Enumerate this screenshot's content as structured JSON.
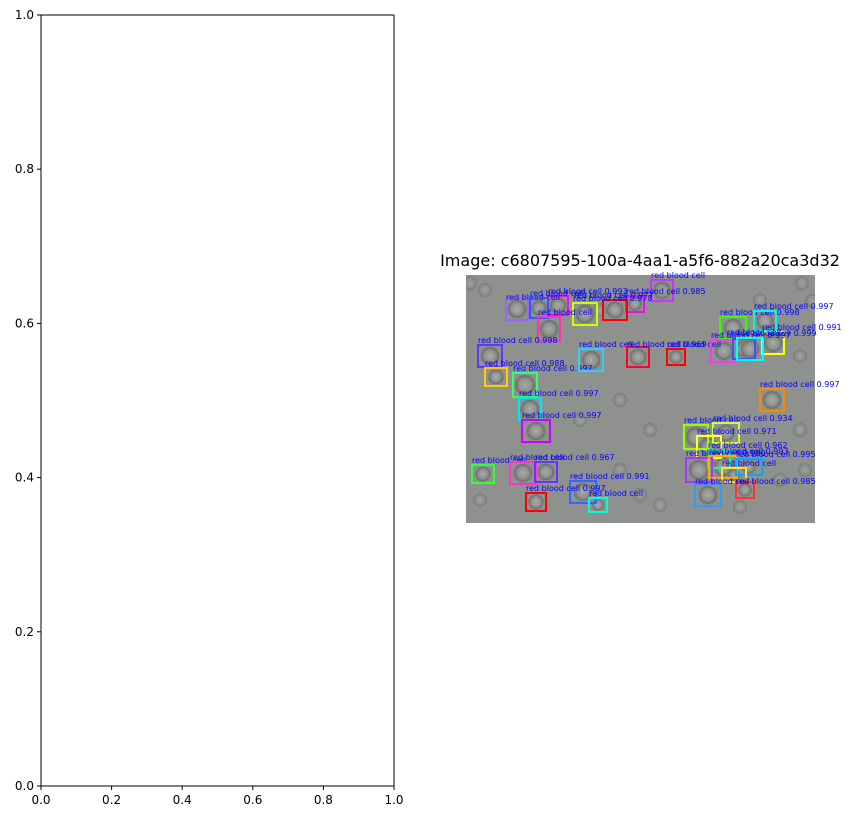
{
  "chart_data": [
    {
      "type": "scatter",
      "title": "",
      "xlabel": "",
      "ylabel": "",
      "xlim": [
        0,
        1
      ],
      "ylim": [
        0,
        1
      ],
      "x_ticks": [
        "0.0",
        "0.2",
        "0.4",
        "0.6",
        "0.8",
        "1.0"
      ],
      "y_ticks": [
        "0.0",
        "0.2",
        "0.4",
        "0.6",
        "0.8",
        "1.0"
      ],
      "series": [],
      "grid": false
    },
    {
      "type": "image",
      "title": "Image: c6807595-100a-4aa1-a5f6-882a20ca3d32",
      "background_color": "#8f918f",
      "detections": [
        {
          "label": "red blood cell",
          "color": "#cc33ff"
        },
        {
          "label": "red blood cell 0.993",
          "color": "#ff00ff"
        },
        {
          "label": "red blood cell 0.985",
          "color": "#ff00ff"
        },
        {
          "label": "red blood cell 0.977",
          "color": "#ff0000"
        },
        {
          "label": "red blood cell",
          "color": "#9966ff"
        },
        {
          "label": "red blood cell",
          "color": "#3355ff"
        },
        {
          "label": "red blood cell 0.978",
          "color": "#ccff00"
        },
        {
          "label": "red blood cell",
          "color": "#ff33aa"
        },
        {
          "label": "red blood cell 0.998",
          "color": "#6633ff"
        },
        {
          "label": "red blood cell 0.988",
          "color": "#ffcc00"
        },
        {
          "label": "red blood cell 0.997",
          "color": "#33ff66"
        },
        {
          "label": "red blood cell 0.997",
          "color": "#00e5ff"
        },
        {
          "label": "red blood cell 0.997",
          "color": "#cc00ff"
        },
        {
          "label": "red blood cell",
          "color": "#33ccff"
        },
        {
          "label": "red blood cell 0.969",
          "color": "#ff0033"
        },
        {
          "label": "red blood cell",
          "color": "#ff0000"
        },
        {
          "label": "red blood cell 0.998",
          "color": "#33ff00"
        },
        {
          "label": "red blood cell 0.997",
          "color": "#00ffcc"
        },
        {
          "label": "red blood cell 0.991",
          "color": "#ffff00"
        },
        {
          "label": "red blood cell 0.997",
          "color": "#ff33ff"
        },
        {
          "label": "red blood cell",
          "color": "#3355ff"
        },
        {
          "label": "red blood cell 0.999",
          "color": "#00ffff"
        },
        {
          "label": "red blood cell 0.997",
          "color": "#ff8800"
        },
        {
          "label": "red blood cell",
          "color": "#99ff00"
        },
        {
          "label": "red blood cell 0.934",
          "color": "#ccff33"
        },
        {
          "label": "red blood cell 0.971",
          "color": "#ffff33"
        },
        {
          "label": "red blood cell 0.962",
          "color": "#00ff99"
        },
        {
          "label": "red blood cell 0.980",
          "color": "#aa33ff"
        },
        {
          "label": "red blood cell 0.993",
          "color": "#ffaa00"
        },
        {
          "label": "red blood cell 0.995",
          "color": "#00aaff"
        },
        {
          "label": "red blood cell",
          "color": "#ffdd33"
        },
        {
          "label": "red blood cell 0.985",
          "color": "#ff3333"
        },
        {
          "label": "red blood cell",
          "color": "#3399ff"
        },
        {
          "label": "red blood cell",
          "color": "#33ff33"
        },
        {
          "label": "red blood cell",
          "color": "#ff33cc"
        },
        {
          "label": "red blood cell 0.967",
          "color": "#6633ff"
        },
        {
          "label": "red blood cell 0.991",
          "color": "#3366ff"
        },
        {
          "label": "red blood cell 0.997",
          "color": "#ff0000"
        },
        {
          "label": "red blood cell",
          "color": "#00ffdd"
        }
      ]
    }
  ]
}
